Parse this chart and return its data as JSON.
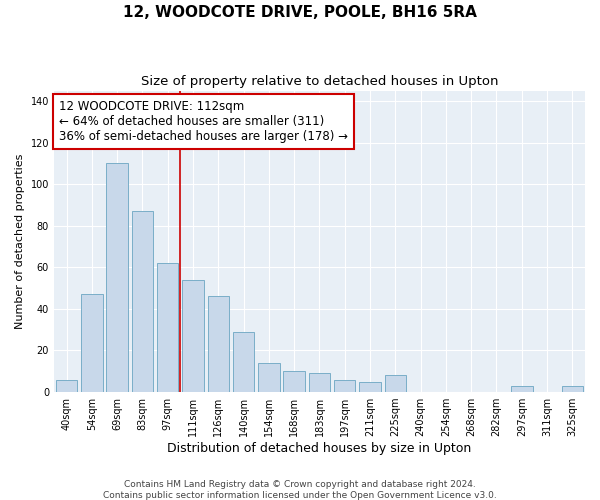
{
  "title": "12, WOODCOTE DRIVE, POOLE, BH16 5RA",
  "subtitle": "Size of property relative to detached houses in Upton",
  "xlabel": "Distribution of detached houses by size in Upton",
  "ylabel": "Number of detached properties",
  "categories": [
    "40sqm",
    "54sqm",
    "69sqm",
    "83sqm",
    "97sqm",
    "111sqm",
    "126sqm",
    "140sqm",
    "154sqm",
    "168sqm",
    "183sqm",
    "197sqm",
    "211sqm",
    "225sqm",
    "240sqm",
    "254sqm",
    "268sqm",
    "282sqm",
    "297sqm",
    "311sqm",
    "325sqm"
  ],
  "values": [
    6,
    47,
    110,
    87,
    62,
    54,
    46,
    29,
    14,
    10,
    9,
    6,
    5,
    8,
    0,
    0,
    0,
    0,
    3,
    0,
    3
  ],
  "bar_color": "#c8d8ea",
  "bar_edge_color": "#7aaec8",
  "vline_x_index": 5,
  "vline_color": "#cc0000",
  "annotation_line1": "12 WOODCOTE DRIVE: 112sqm",
  "annotation_line2": "← 64% of detached houses are smaller (311)",
  "annotation_line3": "36% of semi-detached houses are larger (178) →",
  "annotation_box_color": "#ffffff",
  "annotation_box_edge_color": "#cc0000",
  "ylim": [
    0,
    145
  ],
  "yticks": [
    0,
    20,
    40,
    60,
    80,
    100,
    120,
    140
  ],
  "footer_line1": "Contains HM Land Registry data © Crown copyright and database right 2024.",
  "footer_line2": "Contains public sector information licensed under the Open Government Licence v3.0.",
  "title_fontsize": 11,
  "subtitle_fontsize": 9.5,
  "xlabel_fontsize": 9,
  "ylabel_fontsize": 8,
  "tick_fontsize": 7,
  "annotation_fontsize": 8.5,
  "footer_fontsize": 6.5,
  "bar_width": 0.85,
  "grid_color": "#d0dce8"
}
